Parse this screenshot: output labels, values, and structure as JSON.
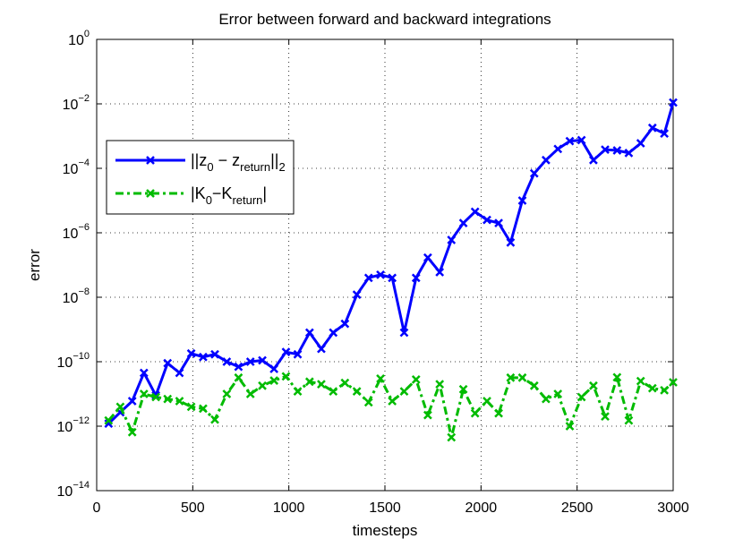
{
  "chart_data": {
    "type": "line",
    "title": "Error between forward and backward integrations",
    "xlabel": "timesteps",
    "ylabel": "error",
    "xlim": [
      0,
      3000
    ],
    "ylim": [
      1e-14,
      1
    ],
    "yscale": "log",
    "grid": true,
    "legend_position": "upper-left",
    "x_ticks": [
      "0",
      "500",
      "1000",
      "1500",
      "2000",
      "2500",
      "3000"
    ],
    "y_ticks": [
      {
        "base": "10",
        "exp": "0",
        "value": 1
      },
      {
        "base": "10",
        "exp": "−2",
        "value": 0.01
      },
      {
        "base": "10",
        "exp": "−4",
        "value": 0.0001
      },
      {
        "base": "10",
        "exp": "−6",
        "value": 1e-06
      },
      {
        "base": "10",
        "exp": "−8",
        "value": 1e-08
      },
      {
        "base": "10",
        "exp": "−10",
        "value": 1e-10
      },
      {
        "base": "10",
        "exp": "−12",
        "value": 1e-12
      },
      {
        "base": "10",
        "exp": "−14",
        "value": 1e-14
      }
    ],
    "series": [
      {
        "name": "||z0 − zreturn||2",
        "legend": {
          "pre": "||z",
          "sub1": "0",
          "mid": " − z",
          "sub2": "return",
          "post": "||",
          "sub3": "2"
        },
        "color": "#0000ff",
        "style": "solid",
        "marker": "x",
        "x": [
          62,
          123,
          185,
          246,
          308,
          369,
          431,
          492,
          554,
          615,
          677,
          738,
          800,
          862,
          923,
          985,
          1046,
          1108,
          1169,
          1231,
          1292,
          1354,
          1415,
          1477,
          1538,
          1600,
          1662,
          1723,
          1785,
          1846,
          1908,
          1969,
          2031,
          2092,
          2154,
          2215,
          2277,
          2338,
          2400,
          2462,
          2523,
          2585,
          2646,
          2708,
          2769,
          2831,
          2892,
          2954,
          3000
        ],
        "y": [
          1.2e-12,
          2.7e-12,
          6e-12,
          4.5e-11,
          9e-12,
          9e-11,
          4.5e-11,
          1.8e-10,
          1.4e-10,
          1.7e-10,
          1e-10,
          7e-11,
          1e-10,
          1.1e-10,
          6e-11,
          2e-10,
          1.7e-10,
          8e-10,
          2.5e-10,
          8e-10,
          1.5e-09,
          1.2e-08,
          4e-08,
          5e-08,
          4e-08,
          8e-10,
          4e-08,
          1.7e-07,
          6e-08,
          6e-07,
          2e-06,
          4.5e-06,
          2.5e-06,
          2e-06,
          5e-07,
          1e-05,
          7e-05,
          0.00018,
          0.0004,
          0.0007,
          0.00075,
          0.00018,
          0.00038,
          0.00036,
          0.0003,
          0.0006,
          0.0018,
          0.0012,
          0.011
        ]
      },
      {
        "name": "|K0−Kreturn|",
        "legend": {
          "pre": "|K",
          "sub1": "0",
          "mid": "−K",
          "sub2": "return",
          "post": "|",
          "sub3": ""
        },
        "color": "#00bb00",
        "style": "dashdot",
        "marker": "x",
        "x": [
          62,
          123,
          185,
          246,
          308,
          369,
          431,
          492,
          554,
          615,
          677,
          738,
          800,
          862,
          923,
          985,
          1046,
          1108,
          1169,
          1231,
          1292,
          1354,
          1415,
          1477,
          1538,
          1600,
          1662,
          1723,
          1785,
          1846,
          1908,
          1969,
          2031,
          2092,
          2154,
          2215,
          2277,
          2338,
          2400,
          2462,
          2523,
          2585,
          2646,
          2708,
          2769,
          2831,
          2892,
          2954,
          3000
        ],
        "y": [
          1.5e-12,
          4e-12,
          6.5e-13,
          1e-11,
          8e-12,
          7e-12,
          6e-12,
          4e-12,
          3.5e-12,
          1.6e-12,
          1e-11,
          3.2e-11,
          1e-11,
          1.8e-11,
          2.6e-11,
          3.5e-11,
          1.2e-11,
          2.4e-11,
          2e-11,
          1.2e-11,
          2.2e-11,
          1.2e-11,
          5.5e-12,
          3e-11,
          6e-12,
          1.2e-11,
          2.8e-11,
          2.2e-12,
          2e-11,
          4.5e-13,
          1.4e-11,
          2.5e-12,
          6e-12,
          2.5e-12,
          3.2e-11,
          3.2e-11,
          1.8e-11,
          7e-12,
          1e-11,
          1e-12,
          8e-12,
          1.8e-11,
          2e-12,
          3.3e-11,
          1.5e-12,
          2.5e-11,
          1.5e-11,
          1.3e-11,
          2.3e-11
        ]
      }
    ]
  }
}
